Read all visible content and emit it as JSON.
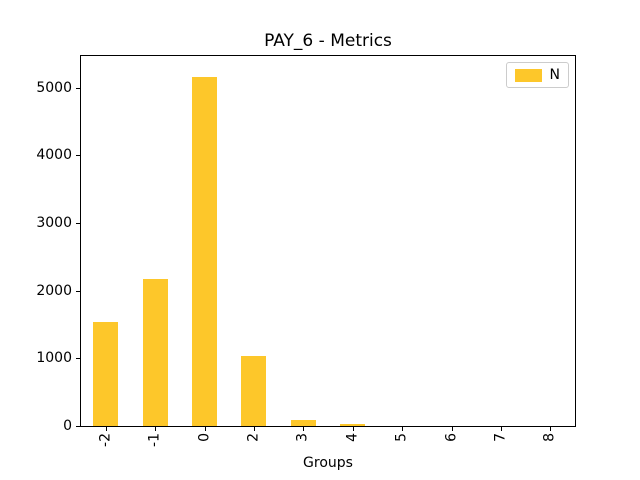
{
  "chart_data": {
    "type": "bar",
    "title": "PAY_6 - Metrics",
    "xlabel": "Groups",
    "ylabel": "",
    "categories": [
      "-2",
      "-1",
      "0",
      "2",
      "3",
      "4",
      "5",
      "6",
      "7",
      "8"
    ],
    "series": [
      {
        "name": "N",
        "values": [
          1540,
          2180,
          5160,
          1030,
          85,
          30,
          0,
          0,
          0,
          0
        ],
        "color": "#fdc72a"
      }
    ],
    "ylim": [
      0,
      5470
    ],
    "yticks": [
      0,
      1000,
      2000,
      3000,
      4000,
      5000
    ],
    "xtick_rotation": 90,
    "grid": false,
    "legend": {
      "position": "upper right",
      "labels": [
        "N"
      ]
    }
  },
  "colors": {
    "background": "#ffffff",
    "bar": "#fdc72a",
    "axis": "#000000",
    "legend_border": "#cccccc",
    "text": "#000000"
  }
}
